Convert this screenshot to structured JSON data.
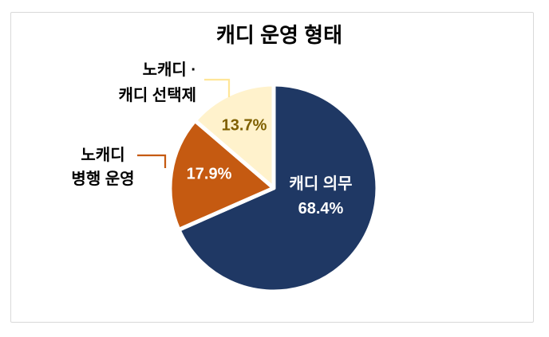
{
  "chart_data": {
    "type": "pie",
    "title": "캐디 운영 형태",
    "unit": "%",
    "rotation_start": "top",
    "direction": "clockwise",
    "legend_position": "none",
    "slices": [
      {
        "label": "캐디 의무",
        "value": 68.4,
        "pct_label": "68.4%",
        "color": "#1F3864",
        "pct_label_color": "#FFFFFF",
        "label_position": "inside"
      },
      {
        "label": "노캐디 병행 운영",
        "value": 17.9,
        "pct_label": "17.9%",
        "color": "#C55A11",
        "pct_label_color": "#FFFFFF",
        "label_position": "callout-left"
      },
      {
        "label": "노캐디 · 캐디 선택제",
        "value": 13.7,
        "pct_label": "13.7%",
        "color": "#FFF2CC",
        "pct_label_color": "#7F6000",
        "label_position": "callout-top-left"
      }
    ]
  },
  "callouts": {
    "orange": {
      "line1": "노캐디",
      "line2": "병행 운영",
      "line_color": "#C55A11",
      "text_color": "#000000"
    },
    "cream": {
      "line1": "노캐디 ·",
      "line2": "캐디 선택제",
      "line_color": "#FFE699",
      "text_color": "#000000"
    }
  },
  "frame": {
    "border_color": "#D9D9D9",
    "background": "#FFFFFF"
  }
}
